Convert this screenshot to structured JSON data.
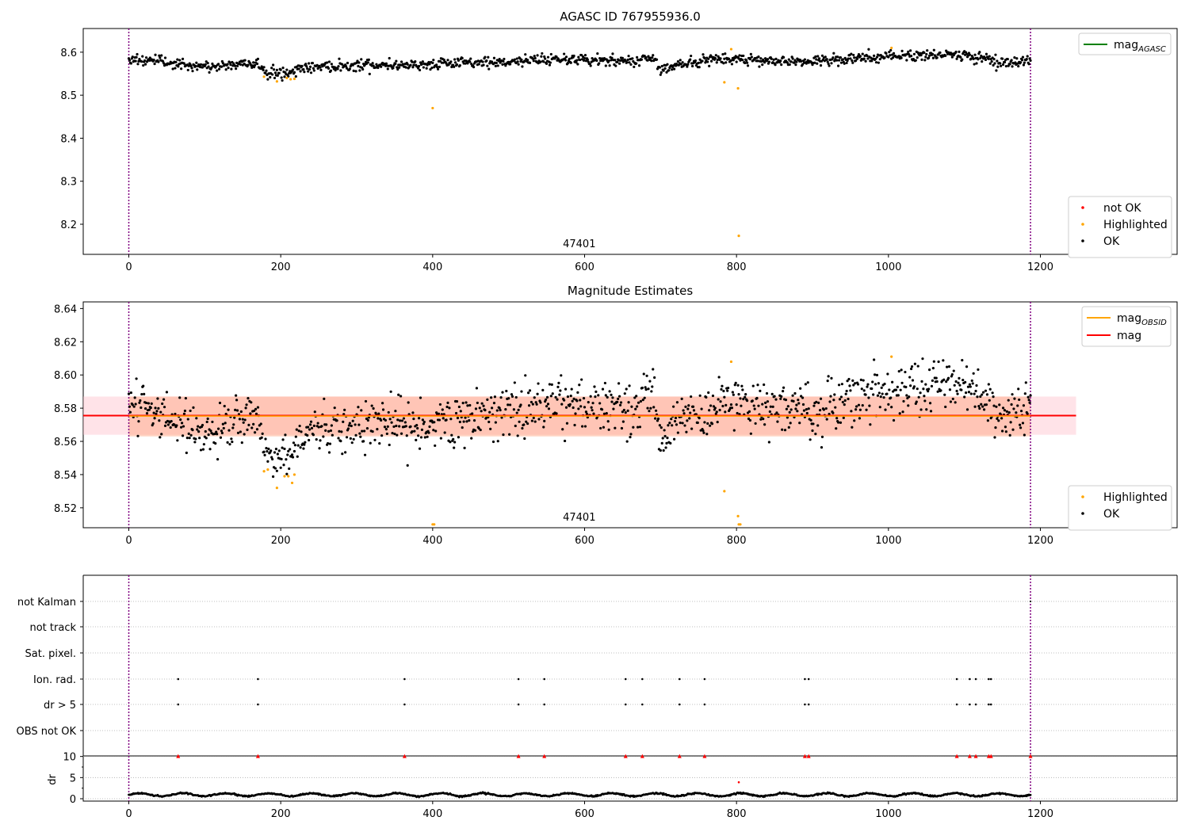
{
  "chart_data": [
    {
      "panel": "agasc",
      "type": "scatter",
      "title": "AGASC ID 767955936.0",
      "xlim": [
        -60,
        1380
      ],
      "ylim": [
        8.13,
        8.655
      ],
      "xticks": [
        0,
        200,
        400,
        600,
        800,
        1000,
        1200
      ],
      "yticks": [
        8.2,
        8.3,
        8.4,
        8.5,
        8.6
      ],
      "obsid_line_x": [
        0,
        1187
      ],
      "obsid_label": "47401",
      "line_legend": [
        {
          "name": "mag",
          "sub": "AGASC",
          "color": "#008000"
        }
      ],
      "legend": [
        {
          "name": "not OK",
          "color": "#ff0000"
        },
        {
          "name": "Highlighted",
          "color": "#ffa500"
        },
        {
          "name": "OK",
          "color": "#000000"
        }
      ],
      "ok_trend": [
        [
          0,
          8.585
        ],
        [
          60,
          8.575
        ],
        [
          80,
          8.565
        ],
        [
          120,
          8.568
        ],
        [
          170,
          8.575
        ],
        [
          180,
          8.55
        ],
        [
          210,
          8.553
        ],
        [
          230,
          8.565
        ],
        [
          300,
          8.57
        ],
        [
          400,
          8.572
        ],
        [
          500,
          8.578
        ],
        [
          560,
          8.585
        ],
        [
          660,
          8.578
        ],
        [
          690,
          8.59
        ],
        [
          700,
          8.56
        ],
        [
          720,
          8.57
        ],
        [
          780,
          8.585
        ],
        [
          900,
          8.578
        ],
        [
          1000,
          8.59
        ],
        [
          1100,
          8.595
        ],
        [
          1150,
          8.575
        ],
        [
          1187,
          8.58
        ]
      ],
      "highlighted_points": [
        [
          178,
          8.543
        ],
        [
          195,
          8.532
        ],
        [
          208,
          8.54
        ],
        [
          213,
          8.537
        ],
        [
          218,
          8.538
        ],
        [
          400,
          8.47
        ],
        [
          784,
          8.53
        ],
        [
          793,
          8.607
        ],
        [
          802,
          8.516
        ],
        [
          803,
          8.173
        ],
        [
          1004,
          8.61
        ]
      ]
    },
    {
      "panel": "estimates",
      "type": "scatter",
      "title": "Magnitude Estimates",
      "xlim": [
        -60,
        1380
      ],
      "ylim": [
        8.508,
        8.644
      ],
      "xticks": [
        0,
        200,
        400,
        600,
        800,
        1000,
        1200
      ],
      "yticks": [
        8.52,
        8.54,
        8.56,
        8.58,
        8.6,
        8.62,
        8.64
      ],
      "obsid_line_x": [
        0,
        1187
      ],
      "obsid_label": "47401",
      "mag": 8.5755,
      "mag_band": [
        8.564,
        8.587
      ],
      "mag_obsid": 8.5752,
      "obsid_band": [
        8.563,
        8.587
      ],
      "line_legend": [
        {
          "name": "mag",
          "sub": "OBSID",
          "color": "#ffa500"
        },
        {
          "name": "mag",
          "sub": "",
          "color": "#ff0000"
        }
      ],
      "legend": [
        {
          "name": "Highlighted",
          "color": "#ffa500"
        },
        {
          "name": "OK",
          "color": "#000000"
        }
      ],
      "highlighted_points": [
        [
          178,
          8.542
        ],
        [
          183,
          8.543
        ],
        [
          195,
          8.532
        ],
        [
          205,
          8.539
        ],
        [
          210,
          8.539
        ],
        [
          215,
          8.535
        ],
        [
          218,
          8.54
        ],
        [
          400,
          8.51
        ],
        [
          402,
          8.51
        ],
        [
          784,
          8.53
        ],
        [
          793,
          8.608
        ],
        [
          802,
          8.515
        ],
        [
          803,
          8.51
        ],
        [
          805,
          8.51
        ],
        [
          1004,
          8.611
        ]
      ]
    },
    {
      "panel": "flags",
      "type": "scatter",
      "xlim": [
        -60,
        1380
      ],
      "categories": [
        "not Kalman",
        "not track",
        "Sat. pixel.",
        "Ion. rad.",
        "dr > 5",
        "OBS not OK"
      ],
      "flag_x": [
        65,
        170,
        363,
        513,
        547,
        654,
        676,
        725,
        758,
        890,
        895,
        1090,
        1107,
        1115,
        1132,
        1135
      ],
      "obsid_line_x": [
        0,
        1187
      ]
    },
    {
      "panel": "dr",
      "type": "scatter",
      "ylabel": "dr",
      "xlim": [
        -60,
        1380
      ],
      "ylim": [
        0,
        10.5
      ],
      "yticks": [
        0,
        5,
        10
      ],
      "xticks": [
        0,
        200,
        400,
        600,
        800,
        1000,
        1200
      ],
      "capped_x": [
        65,
        170,
        363,
        513,
        547,
        654,
        676,
        725,
        758,
        890,
        895,
        1090,
        1107,
        1115,
        1132,
        1135,
        1187
      ],
      "capped_value": 10,
      "outlier": [
        803,
        3.9
      ],
      "obsid_line_x": [
        0,
        1187
      ]
    }
  ]
}
